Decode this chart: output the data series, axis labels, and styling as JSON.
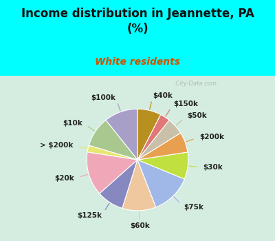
{
  "title": "Income distribution in Jeannette, PA\n(%)",
  "subtitle": "White residents",
  "background_cyan": "#00FFFF",
  "background_chart_color": "#d4ede0",
  "labels": [
    "$100k",
    "$10k",
    "> $200k",
    "$20k",
    "$125k",
    "$60k",
    "$75k",
    "$30k",
    "$200k",
    "$50k",
    "$150k",
    "$40k"
  ],
  "values": [
    10,
    9,
    2,
    13,
    8,
    10,
    12,
    8,
    6,
    5,
    3,
    7
  ],
  "colors": [
    "#a89fc8",
    "#a8c890",
    "#e8e870",
    "#f0a8b8",
    "#8888c0",
    "#f0c8a0",
    "#a0b8e8",
    "#c0e040",
    "#e8a050",
    "#c8c0a8",
    "#e07878",
    "#b89020"
  ],
  "label_fontsize": 7.5,
  "title_fontsize": 12,
  "subtitle_fontsize": 10,
  "subtitle_color": "#cc5500",
  "watermark": "  City-Data.com",
  "title_color": "#111111",
  "label_color": "#222222",
  "start_angle": 90,
  "wedge_edge_color": "white",
  "wedge_linewidth": 0.8
}
